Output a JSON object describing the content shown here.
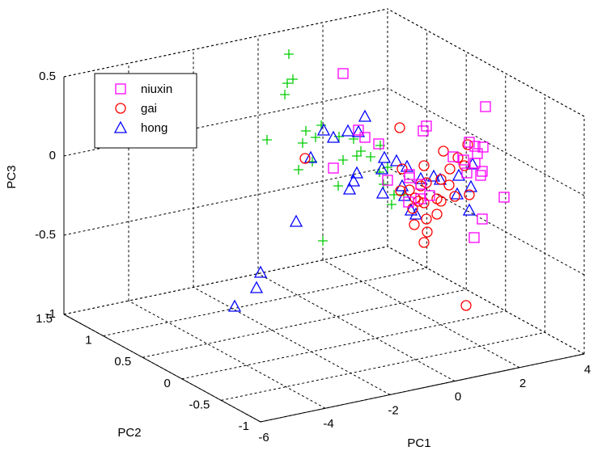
{
  "chart_data": {
    "type": "scatter",
    "dimensions": 3,
    "xlabel": "PC1",
    "ylabel": "PC2",
    "zlabel": "PC3",
    "xlim": [
      -6,
      4
    ],
    "ylim": [
      -1,
      1.5
    ],
    "zlim": [
      -1,
      0.5
    ],
    "x_ticks": [
      "-6",
      "-4",
      "-2",
      "0",
      "2",
      "4"
    ],
    "y_ticks": [
      "-1",
      "-0.5",
      "0",
      "0.5",
      "1",
      "1.5"
    ],
    "z_ticks": [
      "-1",
      "-0.5",
      "0",
      "0.5"
    ],
    "grid": true,
    "box": "dashed",
    "legend_position": "top-left",
    "series": [
      {
        "name": "niuxin",
        "marker": "square",
        "color": "#ff00ff",
        "points": [
          [
            424,
            91
          ],
          [
            600,
            132
          ],
          [
            527,
            156
          ],
          [
            523,
            162
          ],
          [
            443,
            161
          ],
          [
            451,
            170
          ],
          [
            468,
            178
          ],
          [
            580,
            176
          ],
          [
            587,
            181
          ],
          [
            597,
            182
          ],
          [
            560,
            194
          ],
          [
            573,
            198
          ],
          [
            590,
            190
          ],
          [
            587,
            202
          ],
          [
            596,
            212
          ],
          [
            577,
            214
          ],
          [
            594,
            217
          ],
          [
            506,
            216
          ],
          [
            506,
            220
          ],
          [
            479,
            223
          ],
          [
            412,
            208
          ],
          [
            520,
            246
          ],
          [
            531,
            242
          ],
          [
            623,
            244
          ],
          [
            596,
            271
          ],
          [
            586,
            294
          ],
          [
            505,
            250
          ],
          [
            520,
            228
          ]
        ]
      },
      {
        "name": "gai",
        "marker": "circle",
        "color": "#ff0000",
        "points": [
          [
            494,
            158
          ],
          [
            548,
            187
          ],
          [
            578,
            179
          ],
          [
            566,
            195
          ],
          [
            574,
            205
          ],
          [
            556,
            209
          ],
          [
            377,
            196
          ],
          [
            497,
            209
          ],
          [
            524,
            205
          ],
          [
            545,
            222
          ],
          [
            520,
            230
          ],
          [
            527,
            226
          ],
          [
            506,
            235
          ],
          [
            513,
            245
          ],
          [
            517,
            249
          ],
          [
            524,
            251
          ],
          [
            540,
            246
          ],
          [
            545,
            249
          ],
          [
            562,
            243
          ],
          [
            580,
            241
          ],
          [
            510,
            258
          ],
          [
            540,
            265
          ],
          [
            527,
            271
          ],
          [
            512,
            278
          ],
          [
            528,
            287
          ],
          [
            524,
            300
          ],
          [
            576,
            378
          ],
          [
            495,
            236
          ],
          [
            555,
            229
          ]
        ]
      },
      {
        "name": "hong",
        "marker": "triangle",
        "color": "#0000ff",
        "points": [
          [
            451,
            144
          ],
          [
            443,
            163
          ],
          [
            430,
            162
          ],
          [
            400,
            161
          ],
          [
            384,
            195
          ],
          [
            412,
            170
          ],
          [
            475,
            195
          ],
          [
            490,
            199
          ],
          [
            472,
            209
          ],
          [
            441,
            214
          ],
          [
            503,
            206
          ],
          [
            520,
            221
          ],
          [
            536,
            218
          ],
          [
            544,
            222
          ],
          [
            567,
            217
          ],
          [
            584,
            203
          ],
          [
            582,
            231
          ],
          [
            437,
            224
          ],
          [
            432,
            234
          ],
          [
            473,
            239
          ],
          [
            500,
            242
          ],
          [
            497,
            230
          ],
          [
            508,
            260
          ],
          [
            514,
            265
          ],
          [
            565,
            240
          ],
          [
            580,
            260
          ],
          [
            366,
            274
          ],
          [
            322,
            337
          ],
          [
            317,
            356
          ],
          [
            290,
            379
          ]
        ]
      },
      {
        "name": "",
        "marker": "plus",
        "color": "#00cc00",
        "points": [
          [
            357,
            67
          ],
          [
            362,
            98
          ],
          [
            355,
            103
          ],
          [
            352,
            117
          ],
          [
            330,
            173
          ],
          [
            378,
            162
          ],
          [
            397,
            155
          ],
          [
            374,
            177
          ],
          [
            390,
            170
          ],
          [
            419,
            169
          ],
          [
            437,
            172
          ],
          [
            446,
            187
          ],
          [
            441,
            193
          ],
          [
            424,
            198
          ],
          [
            458,
            194
          ],
          [
            469,
            213
          ],
          [
            479,
            207
          ],
          [
            470,
            180
          ],
          [
            386,
            200
          ],
          [
            369,
            210
          ],
          [
            418,
            230
          ],
          [
            474,
            228
          ],
          [
            487,
            241
          ],
          [
            499,
            241
          ],
          [
            484,
            253
          ],
          [
            399,
            298
          ]
        ]
      }
    ]
  }
}
